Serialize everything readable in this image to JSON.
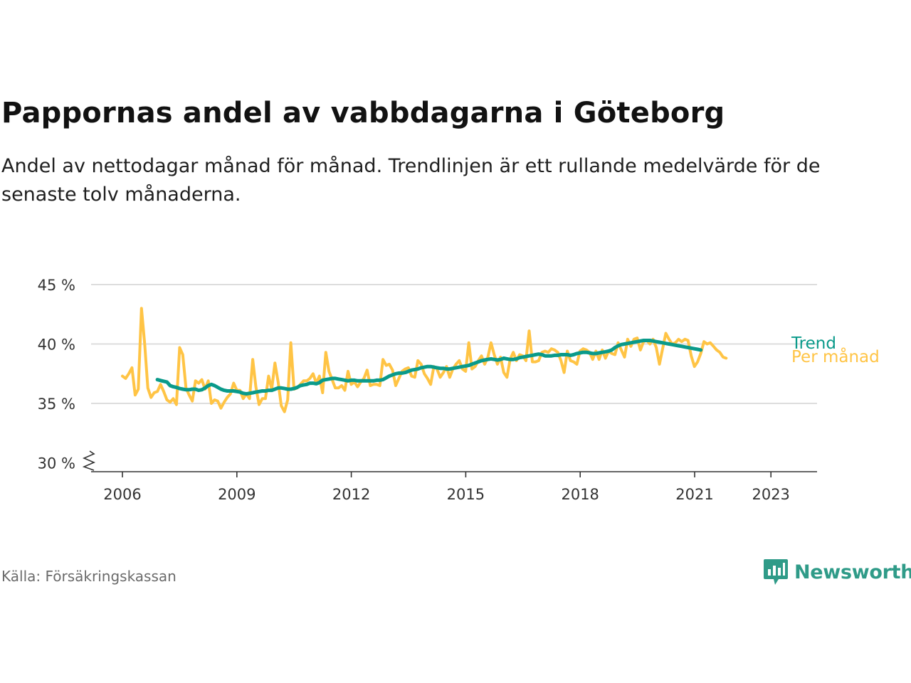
{
  "header": {
    "title": "Pappornas andel av vabbdagarna i Göteborg",
    "subtitle": "Andel av nettodagar månad för månad. Trendlinjen är ett rullande medelvärde för de senaste tolv månaderna."
  },
  "footer": {
    "source": "Källa: Försäkringskassan",
    "brand": "Newsworthy"
  },
  "colors": {
    "monthly": "#ffc445",
    "trend": "#0a9a8a",
    "grid": "#dddddd",
    "axis": "#333333",
    "brand": "#2f9b88"
  },
  "chart_data": {
    "type": "line",
    "title": "Pappornas andel av vabbdagarna i Göteborg",
    "ylim": [
      30,
      45
    ],
    "y_ticks": [
      45,
      40,
      35,
      30
    ],
    "y_tick_labels": [
      "45 %",
      "40 %",
      "35 %",
      "30 %"
    ],
    "y_axis_break": true,
    "x_range": [
      2005.2,
      2024.2
    ],
    "x_ticks": [
      2006,
      2009,
      2012,
      2015,
      2018,
      2021,
      2023
    ],
    "x_tick_labels": [
      "2006",
      "2009",
      "2012",
      "2015",
      "2018",
      "2021",
      "2023"
    ],
    "grid": "horizontal",
    "legend": "direct labels at right end of lines",
    "series": [
      {
        "name": "Per månad",
        "x_start": 2006.0,
        "x_step": 0.0833,
        "values": [
          37.3,
          37.1,
          37.5,
          38.0,
          35.7,
          36.2,
          43.0,
          40.0,
          36.3,
          35.5,
          35.9,
          36.0,
          36.6,
          36.0,
          35.3,
          35.1,
          35.4,
          34.9,
          39.7,
          39.1,
          36.3,
          35.7,
          35.2,
          36.9,
          36.7,
          37.0,
          36.2,
          36.9,
          35.0,
          35.3,
          35.2,
          34.6,
          35.1,
          35.5,
          35.8,
          36.7,
          36.1,
          36.1,
          35.4,
          35.8,
          35.4,
          38.7,
          36.4,
          34.9,
          35.4,
          35.4,
          37.3,
          36.2,
          38.4,
          36.8,
          34.8,
          34.3,
          35.3,
          40.1,
          36.2,
          36.3,
          36.6,
          36.9,
          36.9,
          37.1,
          37.5,
          36.7,
          37.3,
          35.9,
          39.3,
          37.7,
          37.0,
          36.3,
          36.3,
          36.5,
          36.1,
          37.7,
          36.6,
          36.8,
          36.4,
          36.8,
          37.1,
          37.8,
          36.5,
          36.6,
          36.6,
          36.5,
          38.7,
          38.2,
          38.3,
          37.8,
          36.5,
          37.1,
          37.7,
          37.9,
          38.0,
          37.3,
          37.2,
          38.6,
          38.3,
          37.5,
          37.1,
          36.6,
          38.1,
          37.9,
          37.2,
          37.6,
          38.1,
          37.2,
          37.9,
          38.3,
          38.6,
          37.9,
          37.7,
          40.1,
          37.9,
          38.1,
          38.6,
          39.0,
          38.3,
          38.9,
          40.1,
          39.1,
          38.3,
          38.9,
          37.6,
          37.2,
          38.7,
          39.3,
          38.6,
          39.1,
          39.0,
          38.6,
          41.1,
          38.5,
          38.5,
          38.6,
          39.3,
          39.4,
          39.3,
          39.6,
          39.5,
          39.3,
          38.6,
          37.6,
          39.4,
          38.6,
          38.5,
          38.3,
          39.4,
          39.6,
          39.5,
          39.3,
          38.7,
          39.4,
          38.7,
          39.5,
          38.8,
          39.4,
          39.2,
          39.1,
          40.1,
          39.5,
          38.9,
          40.4,
          39.8,
          40.4,
          40.5,
          39.5,
          40.2,
          40.3,
          40.0,
          40.4,
          39.7,
          38.3,
          39.6,
          40.9,
          40.4,
          40.0,
          40.1,
          40.4,
          40.2,
          40.4,
          40.3,
          39.0,
          38.1,
          38.5,
          39.2,
          40.2,
          40.0,
          40.1,
          39.8,
          39.5,
          39.3,
          38.9,
          38.8
        ]
      },
      {
        "name": "Trend",
        "x_start": 2006.9167,
        "x_step": 0.0833,
        "values": [
          37.0,
          36.93,
          36.86,
          36.8,
          36.5,
          36.4,
          36.35,
          36.25,
          36.2,
          36.15,
          36.15,
          36.2,
          36.2,
          36.1,
          36.15,
          36.3,
          36.5,
          36.6,
          36.5,
          36.35,
          36.2,
          36.1,
          36.05,
          36.05,
          36.05,
          36.0,
          35.95,
          35.85,
          35.8,
          35.85,
          35.9,
          35.95,
          36.0,
          36.05,
          36.05,
          36.1,
          36.1,
          36.2,
          36.3,
          36.3,
          36.25,
          36.2,
          36.2,
          36.25,
          36.35,
          36.5,
          36.55,
          36.6,
          36.7,
          36.7,
          36.65,
          36.75,
          36.95,
          37.0,
          37.05,
          37.1,
          37.1,
          37.05,
          37.0,
          36.95,
          36.9,
          36.95,
          36.95,
          36.9,
          36.9,
          36.9,
          36.9,
          36.9,
          36.9,
          36.95,
          36.95,
          37.0,
          37.15,
          37.3,
          37.4,
          37.5,
          37.55,
          37.55,
          37.6,
          37.7,
          37.8,
          37.85,
          37.9,
          38.0,
          38.05,
          38.1,
          38.1,
          38.05,
          38.0,
          37.95,
          37.95,
          37.9,
          37.9,
          37.95,
          38.0,
          38.05,
          38.1,
          38.15,
          38.2,
          38.3,
          38.4,
          38.5,
          38.6,
          38.65,
          38.7,
          38.75,
          38.7,
          38.65,
          38.7,
          38.8,
          38.75,
          38.7,
          38.7,
          38.75,
          38.85,
          38.9,
          38.95,
          39.0,
          39.05,
          39.1,
          39.15,
          39.1,
          39.0,
          39.0,
          39.0,
          39.05,
          39.05,
          39.1,
          39.1,
          39.1,
          39.05,
          39.1,
          39.2,
          39.25,
          39.3,
          39.3,
          39.25,
          39.2,
          39.2,
          39.25,
          39.3,
          39.35,
          39.4,
          39.5,
          39.7,
          39.85,
          39.95,
          40.0,
          40.05,
          40.1,
          40.15,
          40.2,
          40.25,
          40.3,
          40.3,
          40.3,
          40.25,
          40.2,
          40.15,
          40.1,
          40.05,
          40.0,
          39.95,
          39.9,
          39.85,
          39.8,
          39.75,
          39.7,
          39.65,
          39.6,
          39.55,
          39.5
        ]
      }
    ]
  }
}
